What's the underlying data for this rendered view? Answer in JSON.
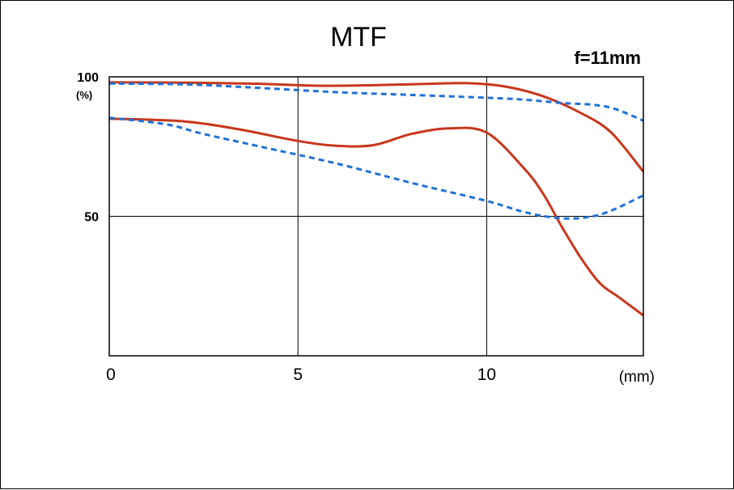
{
  "chart_data": {
    "type": "line",
    "title": "MTF",
    "subtitle": "f=11mm",
    "xlabel": "(mm)",
    "ylabel": "(%)",
    "xlim": [
      0,
      14.15
    ],
    "ylim": [
      0,
      100
    ],
    "x_ticks": [
      {
        "value": 0,
        "label": "0"
      },
      {
        "value": 5,
        "label": "5"
      },
      {
        "value": 10,
        "label": "10"
      }
    ],
    "y_ticks": [
      {
        "value": 100,
        "label": "100"
      },
      {
        "value": 50,
        "label": "50"
      }
    ],
    "grid": {
      "x": [
        5,
        10
      ],
      "y": [
        50
      ]
    },
    "colors": {
      "sagittal": "#c8371c",
      "meridional": "#1f72d6"
    },
    "series": [
      {
        "style": "solid",
        "color": "#c8371c",
        "points": [
          [
            0,
            98
          ],
          [
            2,
            97.9
          ],
          [
            4,
            97.5
          ],
          [
            5.5,
            96.8
          ],
          [
            7,
            97
          ],
          [
            8.5,
            97.5
          ],
          [
            9.5,
            97.7
          ],
          [
            10.5,
            96.5
          ],
          [
            11.5,
            93
          ],
          [
            12.5,
            87
          ],
          [
            13.3,
            80
          ],
          [
            14.15,
            66
          ]
        ]
      },
      {
        "style": "solid",
        "color": "#c8371c",
        "points": [
          [
            0,
            85
          ],
          [
            2,
            84
          ],
          [
            3.5,
            81
          ],
          [
            5,
            77
          ],
          [
            6,
            75.3
          ],
          [
            7,
            75.5
          ],
          [
            8,
            79.5
          ],
          [
            9,
            81.5
          ],
          [
            10,
            80
          ],
          [
            11,
            67
          ],
          [
            11.5,
            58
          ],
          [
            12,
            46
          ],
          [
            12.5,
            35
          ],
          [
            13,
            26
          ],
          [
            13.5,
            21
          ],
          [
            14.15,
            14.5
          ]
        ]
      },
      {
        "style": "dashed",
        "color": "#1f72d6",
        "points": [
          [
            0,
            97.6
          ],
          [
            2,
            97.3
          ],
          [
            4,
            96
          ],
          [
            6,
            94.5
          ],
          [
            8,
            93.5
          ],
          [
            10,
            92.5
          ],
          [
            11,
            91.8
          ],
          [
            12,
            90.6
          ],
          [
            12.8,
            90
          ],
          [
            13.4,
            88.5
          ],
          [
            14.15,
            84.3
          ]
        ]
      },
      {
        "style": "dashed",
        "color": "#1f72d6",
        "points": [
          [
            0,
            85.3
          ],
          [
            1.5,
            83
          ],
          [
            2.5,
            79.5
          ],
          [
            4,
            75
          ],
          [
            6,
            69
          ],
          [
            8,
            62
          ],
          [
            10,
            55.5
          ],
          [
            11,
            51.5
          ],
          [
            11.8,
            49.5
          ],
          [
            12.5,
            49.4
          ],
          [
            13.2,
            51.5
          ],
          [
            14.15,
            57.5
          ]
        ]
      }
    ]
  }
}
